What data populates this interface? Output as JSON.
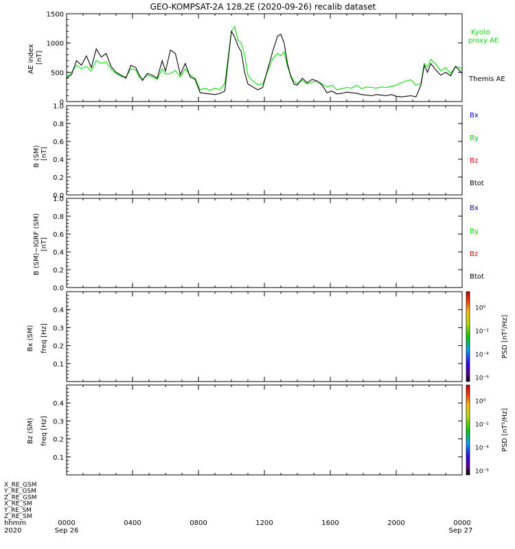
{
  "title": "GEO-KOMPSAT-2A 128.2E (2020-09-26) recalib dataset",
  "colors": {
    "kyoto": "#00e000",
    "themis": "#000000",
    "bx": "#0000c0",
    "by": "#00d000",
    "bz": "#e00000",
    "btot": "#000000"
  },
  "x_ticks": [
    "0000",
    "0400",
    "0800",
    "1200",
    "1600",
    "2000",
    "0000"
  ],
  "x_date_left": "Sep 26",
  "x_date_right": "Sep 27",
  "x_year": "2020",
  "x_hhmm": "hhmm",
  "ephem_labels": [
    "X_RE_GSM",
    "Y_RE_GSM",
    "Z_RE_GSM",
    "X_RE_SM",
    "Y_RE_SM",
    "Z_RE_SM"
  ],
  "colorbar": {
    "label": "PSD [nT²/Hz]",
    "ticks": [
      "10⁰",
      "10⁻²",
      "10⁻⁴",
      "10⁻⁶"
    ]
  },
  "chart_data": [
    {
      "type": "line",
      "ylabel": "AE index [nT]",
      "ylim": [
        0,
        1500
      ],
      "yticks": [
        "0",
        "500",
        "1000",
        "1500"
      ],
      "x_unit": "hours UT",
      "xlim": [
        0,
        24
      ],
      "series": [
        {
          "name": "Kyoto proxy AE",
          "color": "#00e000",
          "x": [
            0,
            0.3,
            0.6,
            0.9,
            1.2,
            1.5,
            1.8,
            2.1,
            2.4,
            2.7,
            3.0,
            3.3,
            3.6,
            3.9,
            4.2,
            4.4,
            4.6,
            4.9,
            5.2,
            5.5,
            5.8,
            6.0,
            6.3,
            6.6,
            6.9,
            7.2,
            7.5,
            7.8,
            8.1,
            8.4,
            8.7,
            9.0,
            9.3,
            9.6,
            9.8,
            10.0,
            10.2,
            10.4,
            10.6,
            10.8,
            11.0,
            11.3,
            11.6,
            11.9,
            12.2,
            12.5,
            12.8,
            13.0,
            13.2,
            13.4,
            13.6,
            13.8,
            14.0,
            14.3,
            14.6,
            14.9,
            15.2,
            15.5,
            15.8,
            16.1,
            16.4,
            16.7,
            17.0,
            17.3,
            17.6,
            17.9,
            18.2,
            18.5,
            18.8,
            19.1,
            19.4,
            19.7,
            20.0,
            20.3,
            20.6,
            20.9,
            21.2,
            21.5,
            21.7,
            21.9,
            22.1,
            22.4,
            22.7,
            23.0,
            23.3,
            23.6,
            24.0
          ],
          "y": [
            420,
            500,
            620,
            560,
            600,
            520,
            700,
            650,
            680,
            550,
            480,
            430,
            420,
            560,
            540,
            420,
            380,
            450,
            420,
            380,
            560,
            470,
            480,
            530,
            420,
            560,
            450,
            400,
            200,
            230,
            190,
            230,
            200,
            310,
            750,
            1200,
            1280,
            1050,
            1000,
            800,
            450,
            350,
            290,
            300,
            520,
            730,
            820,
            780,
            850,
            600,
            450,
            340,
            310,
            360,
            300,
            330,
            350,
            300,
            250,
            280,
            200,
            220,
            240,
            230,
            280,
            220,
            250,
            240,
            230,
            250,
            240,
            260,
            280,
            320,
            350,
            370,
            280,
            310,
            650,
            590,
            720,
            640,
            520,
            580,
            480,
            600,
            560
          ]
        },
        {
          "name": "Themis AE",
          "color": "#000000",
          "x": [
            0,
            0.3,
            0.6,
            0.9,
            1.2,
            1.5,
            1.8,
            2.1,
            2.4,
            2.7,
            3.0,
            3.3,
            3.6,
            3.9,
            4.2,
            4.4,
            4.6,
            4.9,
            5.2,
            5.5,
            5.8,
            6.0,
            6.3,
            6.6,
            6.9,
            7.2,
            7.5,
            7.8,
            8.1,
            8.4,
            8.7,
            9.0,
            9.3,
            9.6,
            9.8,
            10.0,
            10.2,
            10.4,
            10.6,
            10.8,
            11.0,
            11.3,
            11.6,
            11.9,
            12.2,
            12.5,
            12.8,
            13.0,
            13.2,
            13.4,
            13.6,
            13.8,
            14.0,
            14.3,
            14.6,
            14.9,
            15.2,
            15.5,
            15.8,
            16.1,
            16.4,
            16.7,
            17.0,
            17.3,
            17.6,
            17.9,
            18.2,
            18.5,
            18.8,
            19.1,
            19.4,
            19.7,
            20.0,
            20.3,
            20.6,
            20.9,
            21.2,
            21.5,
            21.7,
            21.9,
            22.1,
            22.4,
            22.7,
            23.0,
            23.3,
            23.6,
            24.0
          ],
          "y": [
            400,
            460,
            700,
            620,
            780,
            580,
            900,
            760,
            820,
            600,
            500,
            450,
            400,
            620,
            580,
            460,
            360,
            480,
            450,
            400,
            700,
            520,
            880,
            820,
            460,
            650,
            420,
            380,
            150,
            140,
            130,
            120,
            140,
            180,
            700,
            1200,
            1100,
            950,
            850,
            500,
            300,
            250,
            200,
            240,
            550,
            850,
            1120,
            1150,
            1000,
            650,
            430,
            300,
            280,
            400,
            320,
            380,
            350,
            280,
            150,
            180,
            130,
            140,
            160,
            150,
            140,
            120,
            110,
            100,
            120,
            110,
            100,
            120,
            90,
            80,
            90,
            100,
            80,
            280,
            620,
            500,
            650,
            540,
            450,
            500,
            440,
            600,
            480
          ]
        }
      ]
    },
    {
      "type": "line",
      "ylabel": "B (SM) [nT]",
      "ylim": [
        0,
        1
      ],
      "yticks": [
        "0.0",
        "0.2",
        "0.4",
        "0.6",
        "0.8",
        "1.0"
      ],
      "series": [
        {
          "name": "Bx",
          "color": "#0000c0",
          "values": []
        },
        {
          "name": "By",
          "color": "#00d000",
          "values": []
        },
        {
          "name": "Bz",
          "color": "#e00000",
          "values": []
        },
        {
          "name": "Btot",
          "color": "#000000",
          "values": []
        }
      ]
    },
    {
      "type": "line",
      "ylabel": "B (SM)−IGRF (SM) [nT]",
      "ylim": [
        0,
        1
      ],
      "yticks": [
        "0.0",
        "0.2",
        "0.4",
        "0.6",
        "0.8",
        "1.0"
      ],
      "series": [
        {
          "name": "Bx",
          "color": "#0000c0",
          "values": []
        },
        {
          "name": "By",
          "color": "#00d000",
          "values": []
        },
        {
          "name": "Bz",
          "color": "#e00000",
          "values": []
        },
        {
          "name": "Btot",
          "color": "#000000",
          "values": []
        }
      ]
    },
    {
      "type": "heatmap",
      "ylabel": "Bx (SM) freq [Hz]",
      "ylim": [
        0,
        0.5
      ],
      "yticks": [
        "0.1",
        "0.2",
        "0.3",
        "0.4"
      ],
      "values": []
    },
    {
      "type": "heatmap",
      "ylabel": "Bz (SM) freq [Hz]",
      "ylim": [
        0,
        0.5
      ],
      "yticks": [
        "0.1",
        "0.2",
        "0.3",
        "0.4"
      ],
      "values": []
    }
  ],
  "panel_labels": {
    "ae": [
      "AE index",
      "[nT]"
    ],
    "b": [
      "B (SM)",
      "[nT]"
    ],
    "bigrf": [
      "B (SM)−IGRF (SM)",
      "[nT]"
    ],
    "bx": [
      "Bx (SM)",
      "freq [Hz]"
    ],
    "bz": [
      "Bz (SM)",
      "freq [Hz]"
    ]
  },
  "legend_ae": [
    "Kyoto",
    "proxy AE",
    "Themis AE"
  ]
}
